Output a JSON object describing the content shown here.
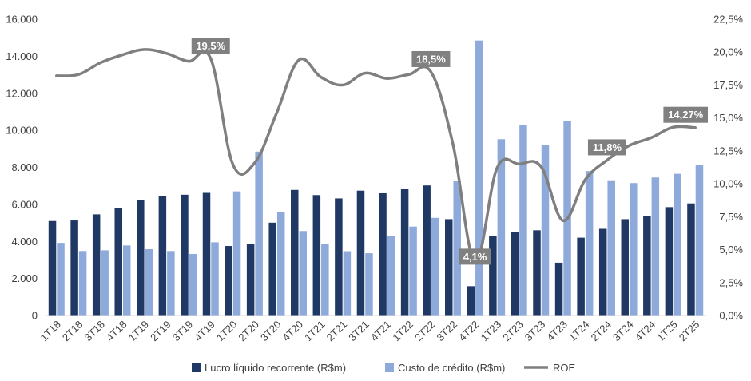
{
  "chart_data": {
    "type": "bar",
    "categories": [
      "1T18",
      "2T18",
      "3T18",
      "4T18",
      "1T19",
      "2T19",
      "3T19",
      "4T19",
      "1T20",
      "2T20",
      "3T20",
      "4T20",
      "1T21",
      "2T21",
      "3T21",
      "4T21",
      "1T22",
      "2T22",
      "3T22",
      "4T22",
      "1T23",
      "2T23",
      "3T23",
      "4T23",
      "1T24",
      "2T24",
      "3T24",
      "4T24",
      "1T25",
      "2T25"
    ],
    "series": [
      {
        "name": "Lucro líquido recorrente (R$m)",
        "type": "bar",
        "axis": "left",
        "color": "#1f3864",
        "values": [
          5100,
          5130,
          5460,
          5820,
          6210,
          6460,
          6520,
          6620,
          3750,
          3880,
          5010,
          6780,
          6500,
          6320,
          6740,
          6600,
          6820,
          7020,
          5200,
          1580,
          4280,
          4500,
          4600,
          2850,
          4200,
          4680,
          5200,
          5380,
          5850,
          6050
        ]
      },
      {
        "name": "Custo de crédito (R$m)",
        "type": "bar",
        "axis": "left",
        "color": "#8eaadb",
        "values": [
          3920,
          3480,
          3520,
          3780,
          3580,
          3480,
          3320,
          3950,
          6700,
          8850,
          5590,
          4560,
          3880,
          3470,
          3360,
          4280,
          4800,
          5270,
          7250,
          14850,
          9520,
          10300,
          9200,
          10520,
          7800,
          7300,
          7150,
          7450,
          7650,
          8150
        ]
      },
      {
        "name": "ROE",
        "type": "line",
        "axis": "right",
        "color": "#7f7f7f",
        "values": [
          18.2,
          18.3,
          19.2,
          19.8,
          20.2,
          19.9,
          19.3,
          19.5,
          11.5,
          11.6,
          15.4,
          19.4,
          18.1,
          17.5,
          18.4,
          18.0,
          18.3,
          18.5,
          13.0,
          4.1,
          11.2,
          11.5,
          11.3,
          7.2,
          10.3,
          11.8,
          12.9,
          13.5,
          14.3,
          14.27
        ]
      }
    ],
    "y_left": {
      "ticks": [
        "0",
        "2.000",
        "4.000",
        "6.000",
        "8.000",
        "10.000",
        "12.000",
        "14.000",
        "16.000"
      ],
      "ylim": [
        0,
        16000
      ]
    },
    "y_right": {
      "ticks": [
        "0,0%",
        "2,5%",
        "5,0%",
        "7,5%",
        "10,0%",
        "12,5%",
        "15,0%",
        "17,5%",
        "20,0%",
        "22,5%"
      ],
      "ylim": [
        0,
        22.5
      ]
    },
    "annotations": [
      {
        "text": "19,5%",
        "category": "4T19",
        "value": 19.5
      },
      {
        "text": "18,5%",
        "category": "2T22",
        "value": 18.5
      },
      {
        "text": "4,1%",
        "category": "4T22",
        "value": 4.1
      },
      {
        "text": "11,8%",
        "category": "2T24",
        "value": 11.8
      },
      {
        "text": "14,27%",
        "category": "2T25",
        "value": 14.27
      }
    ],
    "legend": {
      "placement": "bottom",
      "labels": [
        "Lucro líquido recorrente (R$m)",
        "Custo de crédito (R$m)",
        "ROE"
      ]
    },
    "grid": false
  }
}
